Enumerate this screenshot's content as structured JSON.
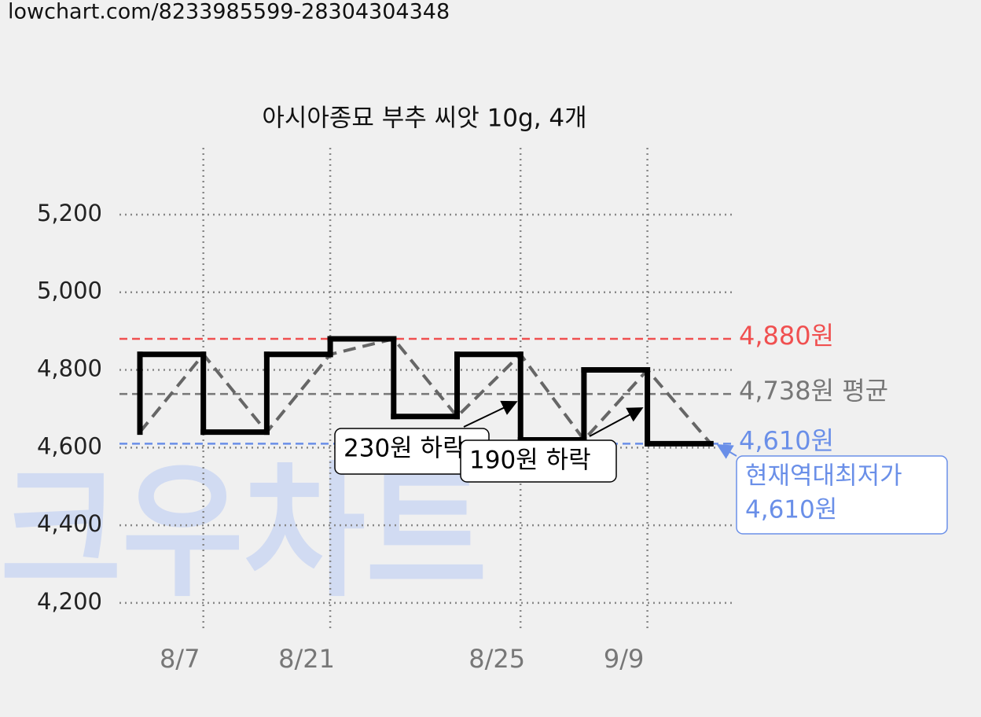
{
  "header": {
    "url": "lowchart.com/8233985599-28304304348"
  },
  "chart_data": {
    "type": "line",
    "title": "아시아종묘 부추 씨앗 10g, 4개",
    "watermark": "크우차트",
    "categories": [
      null,
      "8/7",
      null,
      "8/21",
      null,
      null,
      "8/25",
      null,
      "9/9",
      null
    ],
    "series": [
      {
        "color": "#000000",
        "values": [
          4640,
          4840,
          4640,
          4840,
          4880,
          4680,
          4840,
          4620,
          4800,
          4610
        ]
      }
    ],
    "ylim": [
      4133,
      5372
    ],
    "yticks": [
      {
        "value": 4200,
        "label": "4,200"
      },
      {
        "value": 4400,
        "label": "4,400"
      },
      {
        "value": 4600,
        "label": "4,600"
      },
      {
        "value": 4800,
        "label": "4,800"
      },
      {
        "value": 5000,
        "label": "5,000"
      },
      {
        "value": 5200,
        "label": "5,200"
      }
    ],
    "grid": true,
    "reference_lines": [
      {
        "value": 4880,
        "label": "4,880원",
        "color": "#f05050"
      },
      {
        "value": 4738,
        "label": "4,738원 평균",
        "color": "#777777"
      },
      {
        "value": 4610,
        "label": "4,610원",
        "color": "#6a8fe8"
      }
    ],
    "annotations": [
      {
        "lines": [
          "230원 하락"
        ]
      },
      {
        "lines": [
          "190원 하락"
        ]
      },
      {
        "lines": [
          "현재역대최저가",
          "4,610원"
        ],
        "color": "#6a8fe8"
      }
    ]
  }
}
